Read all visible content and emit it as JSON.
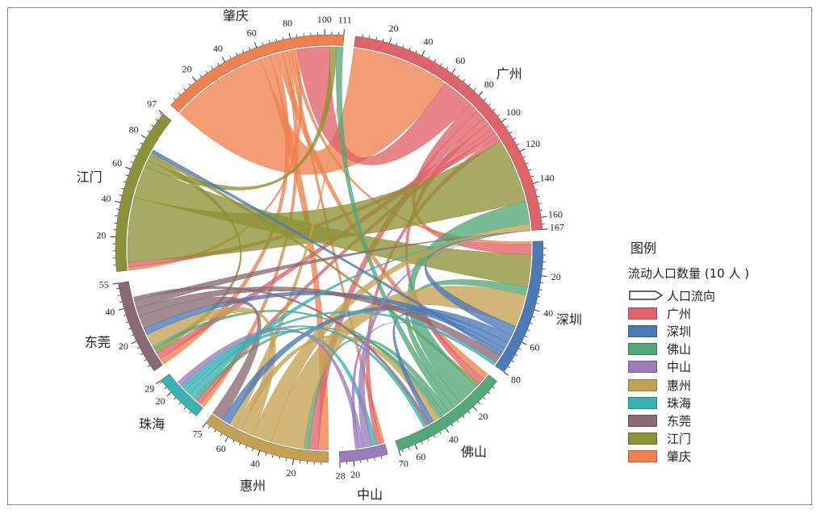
{
  "chart_data": {
    "type": "chord",
    "title": "",
    "legend_title": "图例",
    "legend_subtitle": "流动人口数量 (10 人 )",
    "legend_arrow_label": "人口流向",
    "legend_position": "right",
    "regions": [
      {
        "name": "广州",
        "total": 167,
        "color": "#e0636a",
        "ticks": [
          20,
          40,
          60,
          80,
          100,
          120,
          140,
          160
        ]
      },
      {
        "name": "深圳",
        "total": 80,
        "color": "#4a7ab8",
        "ticks": [
          20,
          40,
          60
        ]
      },
      {
        "name": "佛山",
        "total": 70,
        "color": "#52a878",
        "ticks": [
          20,
          40,
          60
        ]
      },
      {
        "name": "中山",
        "total": 28,
        "color": "#9b7cbd",
        "ticks": [
          20
        ]
      },
      {
        "name": "惠州",
        "total": 75,
        "color": "#c5a253",
        "ticks": [
          20,
          40,
          60
        ]
      },
      {
        "name": "珠海",
        "total": 29,
        "color": "#3ab1b3",
        "ticks": [
          20
        ]
      },
      {
        "name": "东莞",
        "total": 55,
        "color": "#8b6a73",
        "ticks": [
          20,
          40
        ]
      },
      {
        "name": "江门",
        "total": 97,
        "color": "#8d9236",
        "ticks": [
          20,
          40,
          60,
          80
        ]
      },
      {
        "name": "肇庆",
        "total": 111,
        "color": "#ee8150",
        "ticks": [
          20,
          40,
          60,
          80,
          100
        ]
      }
    ],
    "flows": [
      {
        "from": "肇庆",
        "to": "广州",
        "value": 60
      },
      {
        "from": "肇庆",
        "to": "惠州",
        "value": 6
      },
      {
        "from": "肇庆",
        "to": "东莞",
        "value": 4
      },
      {
        "from": "肇庆",
        "to": "佛山",
        "value": 4
      },
      {
        "from": "肇庆",
        "to": "珠海",
        "value": 3
      },
      {
        "from": "肇庆",
        "to": "中山",
        "value": 2
      },
      {
        "from": "肇庆",
        "to": "深圳",
        "value": 2
      },
      {
        "from": "肇庆",
        "to": "江门",
        "value": 2
      },
      {
        "from": "广州",
        "to": "肇庆",
        "value": 20
      },
      {
        "from": "广州",
        "to": "深圳",
        "value": 6
      },
      {
        "from": "广州",
        "to": "惠州",
        "value": 6
      },
      {
        "from": "广州",
        "to": "佛山",
        "value": 4
      },
      {
        "from": "广州",
        "to": "东莞",
        "value": 4
      },
      {
        "from": "广州",
        "to": "珠海",
        "value": 3
      },
      {
        "from": "广州",
        "to": "江门",
        "value": 3
      },
      {
        "from": "广州",
        "to": "中山",
        "value": 3
      },
      {
        "from": "江门",
        "to": "广州",
        "value": 40
      },
      {
        "from": "江门",
        "to": "深圳",
        "value": 20
      },
      {
        "from": "江门",
        "to": "肇庆",
        "value": 4
      },
      {
        "from": "江门",
        "to": "东莞",
        "value": 3
      },
      {
        "from": "江门",
        "to": "佛山",
        "value": 2
      },
      {
        "from": "佛山",
        "to": "广州",
        "value": 14
      },
      {
        "from": "佛山",
        "to": "深圳",
        "value": 5
      },
      {
        "from": "佛山",
        "to": "肇庆",
        "value": 4
      },
      {
        "from": "佛山",
        "to": "惠州",
        "value": 3
      },
      {
        "from": "佛山",
        "to": "珠海",
        "value": 2
      },
      {
        "from": "佛山",
        "to": "东莞",
        "value": 2
      },
      {
        "from": "惠州",
        "to": "深圳",
        "value": 20
      },
      {
        "from": "惠州",
        "to": "广州",
        "value": 12
      },
      {
        "from": "惠州",
        "to": "东莞",
        "value": 8
      },
      {
        "from": "惠州",
        "to": "佛山",
        "value": 4
      },
      {
        "from": "惠州",
        "to": "肇庆",
        "value": 4
      },
      {
        "from": "深圳",
        "to": "广州",
        "value": 6
      },
      {
        "from": "深圳",
        "to": "惠州",
        "value": 5
      },
      {
        "from": "深圳",
        "to": "东莞",
        "value": 4
      },
      {
        "from": "深圳",
        "to": "佛山",
        "value": 3
      },
      {
        "from": "深圳",
        "to": "江门",
        "value": 2
      },
      {
        "from": "东莞",
        "to": "惠州",
        "value": 8
      },
      {
        "from": "东莞",
        "to": "深圳",
        "value": 5
      },
      {
        "from": "东莞",
        "to": "广州",
        "value": 5
      },
      {
        "from": "东莞",
        "to": "佛山",
        "value": 2
      },
      {
        "from": "珠海",
        "to": "广州",
        "value": 4
      },
      {
        "from": "珠海",
        "to": "中山",
        "value": 3
      },
      {
        "from": "珠海",
        "to": "深圳",
        "value": 2
      },
      {
        "from": "珠海",
        "to": "佛山",
        "value": 2
      },
      {
        "from": "中山",
        "to": "广州",
        "value": 5
      },
      {
        "from": "中山",
        "to": "珠海",
        "value": 3
      },
      {
        "from": "中山",
        "to": "深圳",
        "value": 2
      }
    ]
  }
}
